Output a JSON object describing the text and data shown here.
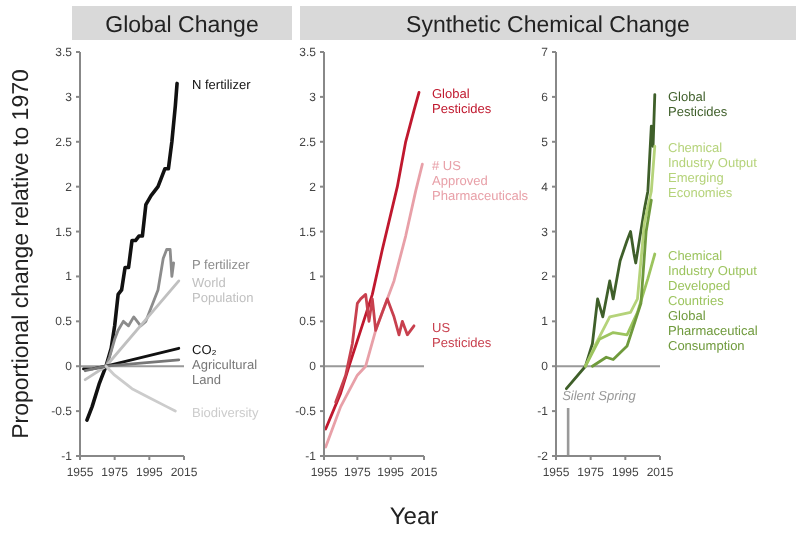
{
  "chart_data": [
    {
      "type": "line",
      "title": "Global Change",
      "ylabel": "Proportional change relative to 1970",
      "xlim": [
        1955,
        2015
      ],
      "xticks": [
        1955,
        1975,
        1995,
        2015
      ],
      "ylim": [
        -1,
        3.5
      ],
      "yticks": [
        -1,
        -0.5,
        0,
        0.5,
        1,
        1.5,
        2,
        2.5,
        3,
        3.5
      ],
      "ref_lines": [
        {
          "axis": "y",
          "value": 0,
          "color": "#999999"
        }
      ],
      "series": [
        {
          "name": "N fertilizer",
          "color": "#111111",
          "x": [
            1959,
            1962,
            1966,
            1970,
            1973,
            1975,
            1977,
            1979,
            1981,
            1983,
            1985,
            1987,
            1989,
            1991,
            1993,
            1996,
            2000,
            2004,
            2006,
            2008,
            2010,
            2011
          ],
          "values": [
            -0.6,
            -0.45,
            -0.2,
            0,
            0.2,
            0.45,
            0.8,
            0.85,
            1.1,
            1.1,
            1.4,
            1.4,
            1.45,
            1.45,
            1.8,
            1.9,
            2.0,
            2.2,
            2.2,
            2.5,
            2.9,
            3.15
          ]
        },
        {
          "name": "P fertilizer",
          "color": "#8c8c8c",
          "x": [
            1970,
            1972,
            1975,
            1977,
            1980,
            1983,
            1986,
            1990,
            1993,
            1996,
            2000,
            2003,
            2005,
            2007,
            2008,
            2009
          ],
          "values": [
            0,
            0.1,
            0.3,
            0.4,
            0.5,
            0.45,
            0.55,
            0.45,
            0.5,
            0.65,
            0.85,
            1.2,
            1.3,
            1.3,
            1.0,
            1.15
          ]
        },
        {
          "name": "World Population",
          "color": "#c0c0c0",
          "x": [
            1958,
            1970,
            2012
          ],
          "values": [
            -0.15,
            0,
            0.95
          ]
        },
        {
          "name": "CO₂",
          "color": "#111111",
          "x": [
            1957,
            1962,
            1970,
            2012
          ],
          "values": [
            -0.03,
            -0.03,
            0,
            0.2
          ]
        },
        {
          "name": "Agricultural Land",
          "color": "#777777",
          "x": [
            1958,
            1970,
            2012
          ],
          "values": [
            -0.05,
            0,
            0.07
          ]
        },
        {
          "name": "Biodiversity",
          "color": "#cccccc",
          "x": [
            1970,
            1975,
            1985,
            1995,
            2005,
            2010
          ],
          "values": [
            0,
            -0.1,
            -0.25,
            -0.35,
            -0.45,
            -0.5
          ]
        }
      ]
    },
    {
      "type": "line",
      "title": "Synthetic Chemical Change",
      "xlabel": "Year",
      "xlim": [
        1955,
        2015
      ],
      "xticks": [
        1955,
        1975,
        1995,
        2015
      ],
      "ylim": [
        -1,
        3.5
      ],
      "yticks": [
        -1,
        -0.5,
        0,
        0.5,
        1,
        1.5,
        2,
        2.5,
        3,
        3.5
      ],
      "ref_lines": [
        {
          "axis": "y",
          "value": 0,
          "color": "#999999"
        }
      ],
      "series": [
        {
          "name": "Global Pesticides",
          "color": "#c0182e",
          "x": [
            1956,
            1965,
            1970,
            1977,
            1984,
            1990,
            1999,
            2004,
            2009,
            2012
          ],
          "values": [
            -0.7,
            -0.3,
            0,
            0.4,
            0.8,
            1.3,
            2.0,
            2.5,
            2.85,
            3.05
          ]
        },
        {
          "name": "# US Approved Pharmaceuticals",
          "color": "#e8a0a8",
          "x": [
            1956,
            1965,
            1975,
            1980,
            1986,
            1990,
            1997,
            2004,
            2010,
            2014
          ],
          "values": [
            -0.9,
            -0.45,
            -0.1,
            0,
            0.4,
            0.6,
            0.95,
            1.45,
            1.95,
            2.25
          ]
        },
        {
          "name": "US Pesticides",
          "color": "#c8404e",
          "x": [
            1962,
            1968,
            1972,
            1975,
            1977,
            1980,
            1982,
            1984,
            1986,
            1990,
            1993,
            1997,
            2000,
            2002,
            2005,
            2009
          ],
          "values": [
            -0.4,
            -0.1,
            0.25,
            0.7,
            0.75,
            0.8,
            0.5,
            0.75,
            0.4,
            0.6,
            0.75,
            0.55,
            0.35,
            0.5,
            0.35,
            0.45
          ]
        }
      ]
    },
    {
      "type": "line",
      "xlim": [
        1955,
        2015
      ],
      "xticks": [
        1955,
        1975,
        1995,
        2015
      ],
      "ylim": [
        -2,
        7
      ],
      "yticks": [
        -2,
        -1,
        0,
        1,
        2,
        3,
        4,
        5,
        6,
        7
      ],
      "ref_lines": [
        {
          "axis": "y",
          "value": 0,
          "color": "#999999"
        },
        {
          "axis": "x",
          "value": 1962,
          "label": "Silent Spring",
          "color": "#999999"
        }
      ],
      "series": [
        {
          "name": "Global Pesticides",
          "color": "#3f5f2a",
          "x": [
            1961,
            1972,
            1976,
            1979,
            1982,
            1986,
            1988,
            1992,
            1996,
            1998,
            2000,
            2001,
            2006,
            2008,
            2010,
            2011,
            2012
          ],
          "values": [
            -0.5,
            0,
            0.5,
            1.5,
            1.1,
            1.9,
            1.5,
            2.35,
            2.8,
            3.0,
            2.5,
            2.3,
            3.5,
            3.9,
            5.35,
            4.9,
            6.05
          ]
        },
        {
          "name": "Chemical Industry Output Emerging Economies",
          "color": "#b5d37a",
          "x": [
            1972,
            1978,
            1986,
            1998,
            2002,
            2006,
            2010,
            2012
          ],
          "values": [
            0,
            0.5,
            1.1,
            1.2,
            1.5,
            3.2,
            3.9,
            4.9
          ]
        },
        {
          "name": "Chemical Industry Output Developed Countries",
          "color": "#9cc45e",
          "x": [
            1972,
            1980,
            1988,
            1996,
            2002,
            2008,
            2012
          ],
          "values": [
            0,
            0.6,
            0.75,
            0.7,
            1.2,
            1.95,
            2.5
          ]
        },
        {
          "name": "Global Pharmaceutical Consumption",
          "color": "#6f9a3c",
          "x": [
            1976,
            1984,
            1988,
            1996,
            2004,
            2007,
            2010
          ],
          "values": [
            0,
            0.2,
            0.15,
            0.45,
            1.4,
            3.0,
            3.7
          ]
        }
      ]
    }
  ]
}
